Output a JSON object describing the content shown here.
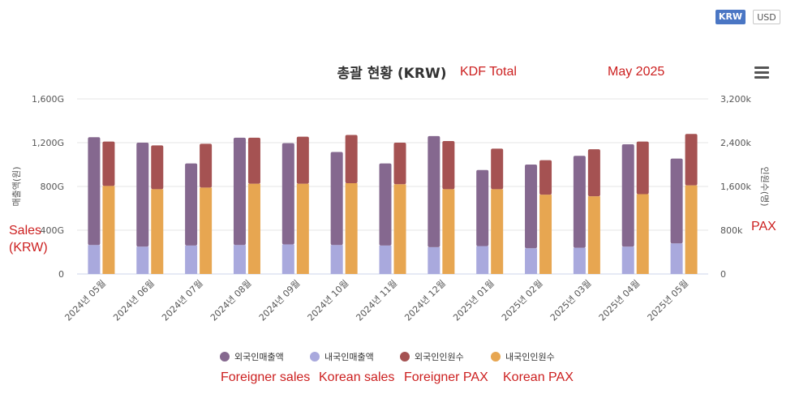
{
  "currency_toggle": {
    "krw": "KRW",
    "usd": "USD"
  },
  "annotations": {
    "kdf_total": "KDF Total",
    "period": "May 2025",
    "sales_line1": "Sales",
    "sales_line2": "(KRW)",
    "pax": "PAX",
    "legend_en": [
      "Foreigner sales",
      "Korean sales",
      "Foreigner PAX",
      "Korean PAX"
    ]
  },
  "colors": {
    "foreign_sales": "#85688f",
    "korean_sales": "#a9a9dd",
    "foreign_pax": "#a55252",
    "korean_pax": "#e7a651"
  },
  "chart_data": {
    "type": "bar",
    "title": "총괄 현황 (KRW)",
    "categories": [
      "2024년 05월",
      "2024년 06월",
      "2024년 07월",
      "2024년 08월",
      "2024년 09월",
      "2024년 10월",
      "2024년 11월",
      "2024년 12월",
      "2025년 01월",
      "2025년 02월",
      "2025년 03월",
      "2025년 04월",
      "2025년 05월"
    ],
    "left_axis": {
      "title": "매출액(원)",
      "ticks": [
        "0",
        "400G",
        "800G",
        "1,200G",
        "1,600G"
      ],
      "range": [
        0,
        1600
      ]
    },
    "right_axis": {
      "title": "인원수(명)",
      "ticks": [
        "0",
        "800k",
        "1,600k",
        "2,400k",
        "3,200k"
      ],
      "range": [
        0,
        3200
      ]
    },
    "stacks": [
      {
        "stack": "sales",
        "axis": "left",
        "unit": "G",
        "series": [
          {
            "name": "외국인매출액",
            "values": [
              985,
              950,
              750,
              980,
              925,
              850,
              750,
              1015,
              695,
              765,
              840,
              935,
              775
            ]
          },
          {
            "name": "내국인매출액",
            "values": [
              265,
              250,
              260,
              265,
              270,
              265,
              260,
              245,
              255,
              235,
              240,
              250,
              280
            ]
          }
        ]
      },
      {
        "stack": "pax",
        "axis": "right",
        "unit": "k",
        "series": [
          {
            "name": "외국인인원수",
            "values": [
              810,
              800,
              800,
              840,
              860,
              880,
              760,
              880,
              740,
              630,
              860,
              960,
              940
            ]
          },
          {
            "name": "내국인인원수",
            "values": [
              1610,
              1550,
              1580,
              1650,
              1650,
              1660,
              1640,
              1550,
              1550,
              1450,
              1420,
              1460,
              1620
            ]
          }
        ]
      }
    ],
    "legend": [
      "외국인매출액",
      "내국인매출액",
      "외국인인원수",
      "내국인인원수"
    ],
    "grid": true,
    "legend_position": "bottom"
  }
}
